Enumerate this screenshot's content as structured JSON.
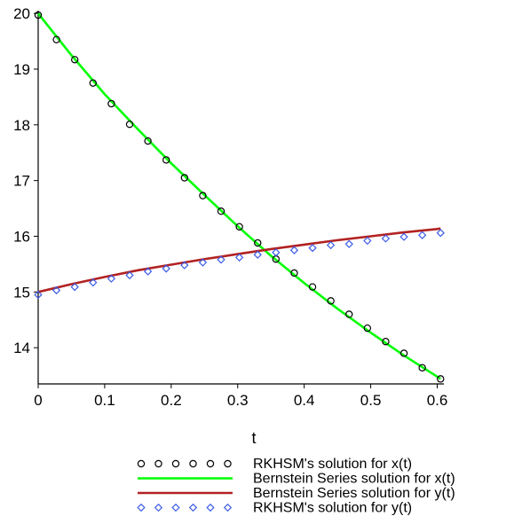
{
  "chart_data": {
    "type": "line",
    "title": "",
    "xlabel": "t",
    "ylabel": "",
    "xlim": [
      0,
      0.61
    ],
    "ylim": [
      13.35,
      20.05
    ],
    "grid": false,
    "legend_position": "bottom",
    "xticks": [
      {
        "value": 0,
        "label": "0"
      },
      {
        "value": 0.1,
        "label": "0.1"
      },
      {
        "value": 0.2,
        "label": "0.2"
      },
      {
        "value": 0.3,
        "label": "0.3"
      },
      {
        "value": 0.4,
        "label": "0.4"
      },
      {
        "value": 0.5,
        "label": "0.5"
      },
      {
        "value": 0.6,
        "label": "0.6"
      }
    ],
    "yticks": [
      {
        "value": 14,
        "label": "14"
      },
      {
        "value": 15,
        "label": "15"
      },
      {
        "value": 16,
        "label": "16"
      },
      {
        "value": 17,
        "label": "17"
      },
      {
        "value": 18,
        "label": "18"
      },
      {
        "value": 19,
        "label": "19"
      },
      {
        "value": 20,
        "label": "20"
      }
    ],
    "series": [
      {
        "name": "RKHSM's solution for x(t)",
        "kind": "markers",
        "marker": "circle",
        "color": "#000000",
        "x": [
          0,
          0.0275,
          0.055,
          0.0825,
          0.11,
          0.1375,
          0.165,
          0.1925,
          0.22,
          0.2475,
          0.275,
          0.3025,
          0.33,
          0.3575,
          0.385,
          0.4125,
          0.44,
          0.4675,
          0.495,
          0.5225,
          0.55,
          0.5775,
          0.605
        ],
        "y": [
          19.97,
          19.53,
          19.17,
          18.75,
          18.38,
          18.01,
          17.71,
          17.37,
          17.05,
          16.73,
          16.45,
          16.17,
          15.88,
          15.59,
          15.34,
          15.09,
          14.84,
          14.6,
          14.35,
          14.11,
          13.9,
          13.64,
          13.44
        ]
      },
      {
        "name": "Bernstein Series solution for x(t)",
        "kind": "line",
        "color": "#00ff00",
        "x": [
          0,
          0.05,
          0.1,
          0.15,
          0.2,
          0.25,
          0.3,
          0.35,
          0.4,
          0.45,
          0.5,
          0.55,
          0.6,
          0.605
        ],
        "y": [
          20.0,
          19.25,
          18.55,
          17.92,
          17.31,
          16.74,
          16.18,
          15.65,
          15.16,
          14.7,
          14.27,
          13.86,
          13.48,
          13.44
        ]
      },
      {
        "name": "Bernstein Series solution for y(t)",
        "kind": "line",
        "color": "#b22222",
        "x": [
          0,
          0.05,
          0.1,
          0.15,
          0.2,
          0.25,
          0.3,
          0.35,
          0.4,
          0.45,
          0.5,
          0.55,
          0.6,
          0.605
        ],
        "y": [
          15.0,
          15.14,
          15.27,
          15.39,
          15.49,
          15.59,
          15.68,
          15.77,
          15.85,
          15.93,
          16.0,
          16.07,
          16.13,
          16.14
        ]
      },
      {
        "name": "RKHSM's solution for y(t)",
        "kind": "markers",
        "marker": "diamond",
        "color": "#3a5be8",
        "x": [
          0,
          0.0275,
          0.055,
          0.0825,
          0.11,
          0.1375,
          0.165,
          0.1925,
          0.22,
          0.2475,
          0.275,
          0.3025,
          0.33,
          0.3575,
          0.385,
          0.4125,
          0.44,
          0.4675,
          0.495,
          0.5225,
          0.55,
          0.5775,
          0.605
        ],
        "y": [
          14.95,
          15.03,
          15.09,
          15.17,
          15.24,
          15.3,
          15.37,
          15.42,
          15.48,
          15.53,
          15.58,
          15.62,
          15.67,
          15.71,
          15.75,
          15.79,
          15.84,
          15.86,
          15.92,
          15.96,
          15.99,
          16.02,
          16.06
        ]
      }
    ],
    "legend": [
      {
        "label": "RKHSM's solution for x(t)",
        "series_index": 0
      },
      {
        "label": "Bernstein Series solution for x(t)",
        "series_index": 1
      },
      {
        "label": "Bernstein Series solution for y(t)",
        "series_index": 2
      },
      {
        "label": "RKHSM's solution for y(t)",
        "series_index": 3
      }
    ]
  }
}
